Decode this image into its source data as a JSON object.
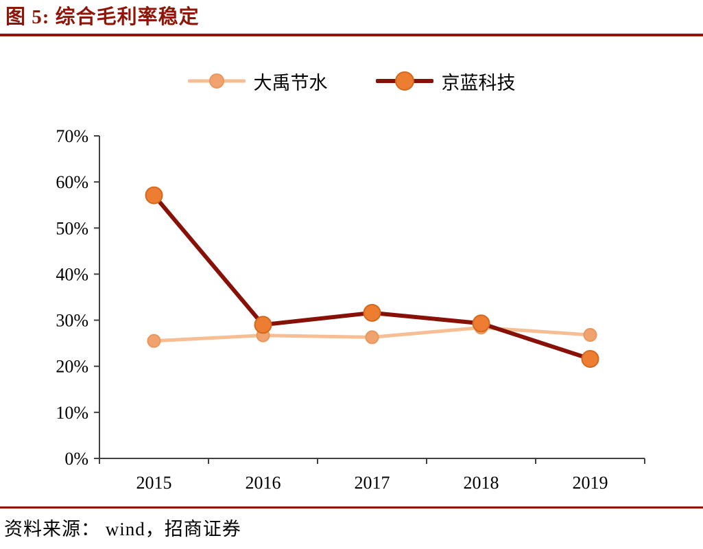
{
  "figure": {
    "title": "图 5:  综合毛利率稳定",
    "source": "资料来源：  wind，招商证券",
    "accent_color": "#8E1507",
    "axis_color": "#404040",
    "text_color": "#000000"
  },
  "legend": [
    {
      "label": "大禹节水"
    },
    {
      "label": "京蓝科技"
    }
  ],
  "chart_data": {
    "type": "line",
    "title": "综合毛利率稳定",
    "categories": [
      "2015",
      "2016",
      "2017",
      "2018",
      "2019"
    ],
    "series": [
      {
        "name": "大禹节水",
        "values": [
          25.5,
          26.7,
          26.3,
          28.4,
          26.8
        ],
        "line_color": "#F6BE92",
        "marker_fill": "#F0A36E",
        "marker_stroke": "#E9965B",
        "marker_radius": 9,
        "line_width": 5
      },
      {
        "name": "京蓝科技",
        "values": [
          57.1,
          29.0,
          31.6,
          29.3,
          21.6
        ],
        "line_color": "#871107",
        "marker_fill": "#ED7D31",
        "marker_stroke": "#D2691E",
        "marker_radius": 12,
        "line_width": 6
      }
    ],
    "xlabel": "",
    "ylabel": "",
    "ylim": [
      0,
      70
    ],
    "ytick_step": 10,
    "ytick_suffix": "%",
    "grid": false,
    "legend_position": "top"
  }
}
